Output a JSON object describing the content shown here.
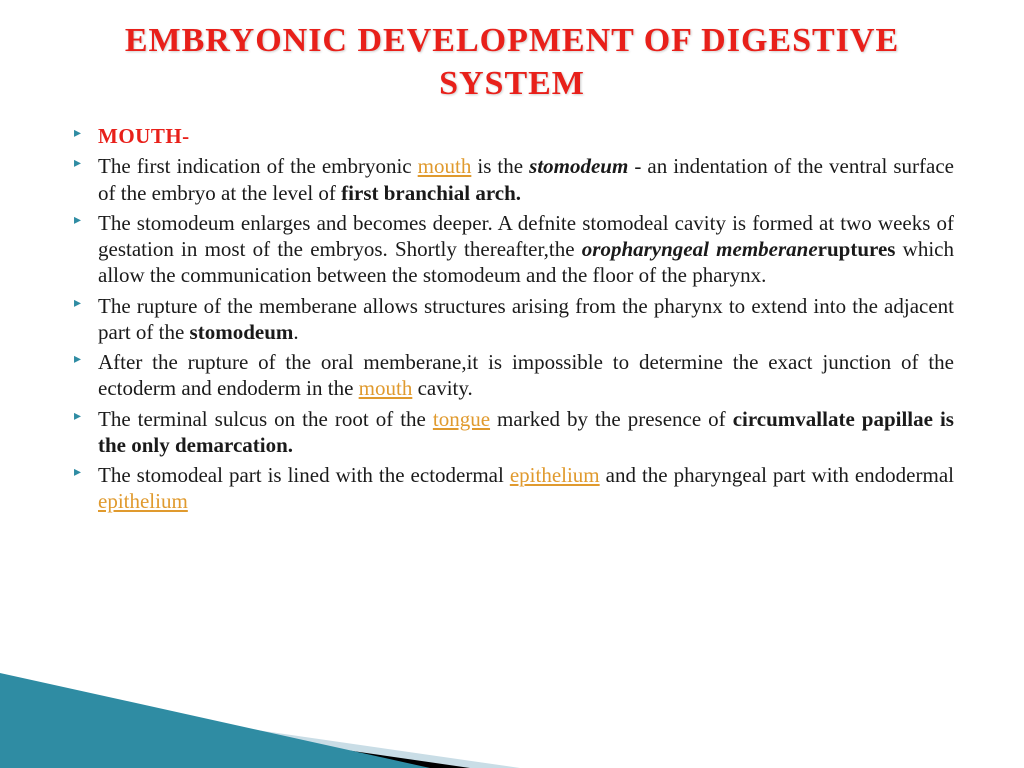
{
  "colors": {
    "title": "#e8201a",
    "bullet_marker": "#2f8ca3",
    "section_heading": "#e8201a",
    "body_text": "#1a1a1a",
    "link": "#e09a2e",
    "bg": "#ffffff",
    "triangle_teal": "#2f8ca3",
    "triangle_light": "#c9dde6",
    "triangle_black": "#000000"
  },
  "typography": {
    "title_fontsize": 34,
    "body_fontsize": 21,
    "section_fontsize": 21
  },
  "title": "EMBRYONIC DEVELOPMENT OF DIGESTIVE SYSTEM",
  "bullets": [
    {
      "type": "heading",
      "text": "MOUTH-"
    },
    {
      "type": "text",
      "runs": [
        {
          "t": "The first indication of the embryonic "
        },
        {
          "t": "mouth",
          "style": "link"
        },
        {
          "t": " is the "
        },
        {
          "t": "stomodeum",
          "style": "bold-italic"
        },
        {
          "t": " - an indentation of the ventral surface of the embryo at the level of "
        },
        {
          "t": "first branchial arch.",
          "style": "bold"
        }
      ]
    },
    {
      "type": "text",
      "runs": [
        {
          "t": "The stomodeum enlarges and becomes deeper. A defnite stomodeal cavity is formed at two weeks of gestation in most of the embryos. Shortly thereafter,the "
        },
        {
          "t": "oropharyngeal memberane",
          "style": "bold-italic"
        },
        {
          "t": "ruptures",
          "style": "bold"
        },
        {
          "t": " which allow the communication between the stomodeum and the floor of the pharynx."
        }
      ]
    },
    {
      "type": "text",
      "runs": [
        {
          "t": "The rupture of the memberane allows structures arising from the pharynx to extend into the adjacent part of the "
        },
        {
          "t": "stomodeum",
          "style": "bold"
        },
        {
          "t": "."
        }
      ]
    },
    {
      "type": "text",
      "runs": [
        {
          "t": "After the rupture of the oral memberane,it is impossible to determine the exact junction of the ectoderm and endoderm in the "
        },
        {
          "t": "mouth",
          "style": "link"
        },
        {
          "t": " cavity."
        }
      ]
    },
    {
      "type": "text",
      "runs": [
        {
          "t": "The terminal sulcus on the root of the "
        },
        {
          "t": "tongue",
          "style": "link"
        },
        {
          "t": " marked by the presence of "
        },
        {
          "t": "circumvallate papillae is the only demarcation.",
          "style": "bold"
        }
      ]
    },
    {
      "type": "text",
      "runs": [
        {
          "t": "The stomodeal part is lined with the ectodermal "
        },
        {
          "t": "epithelium",
          "style": "link"
        },
        {
          "t": " and the pharyngeal part with endodermal "
        },
        {
          "t": "epithelium",
          "style": "link"
        }
      ]
    }
  ]
}
